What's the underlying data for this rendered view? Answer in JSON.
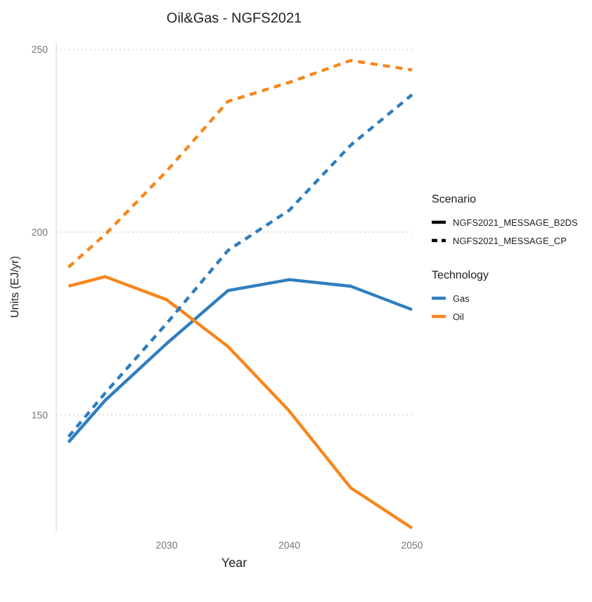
{
  "chart_data": {
    "type": "line",
    "title": "Oil&Gas - NGFS2021",
    "xlabel": "Year",
    "ylabel": "Units (EJ/yr)",
    "legend_title": "Technology",
    "legend": "right",
    "grid": "y",
    "xlim": [
      2021,
      2050
    ],
    "xticks": [
      2030,
      2040,
      2050
    ],
    "ylim": [
      118,
      252
    ],
    "yticks": [
      150,
      200,
      250
    ],
    "x": [
      2022,
      2025,
      2030,
      2035,
      2040,
      2045,
      2050
    ],
    "series": [
      {
        "name": "Gas",
        "color": "#2e7ebf",
        "line_style": "solid",
        "values": [
          142.5,
          154,
          169.5,
          184,
          187,
          185.2,
          178.8
        ]
      },
      {
        "name": "Oil",
        "color": "#f8861d",
        "line_style": "solid",
        "values": [
          185.2,
          187.8,
          181.5,
          168.7,
          151,
          130,
          119
        ]
      },
      {
        "color": "#2e7ebf",
        "line_style": "dashed",
        "values": [
          144,
          156,
          175,
          195,
          206,
          223.8,
          237.6
        ]
      },
      {
        "color": "#f8861d",
        "line_style": "dashed",
        "values": [
          190.4,
          199.4,
          216.7,
          235.8,
          241,
          247,
          244.4
        ]
      }
    ],
    "annotations": [
      "Scenario",
      "NGFS2021_MESSAGE_B2DS",
      "NGFS2021_MESSAGE_CP"
    ]
  }
}
